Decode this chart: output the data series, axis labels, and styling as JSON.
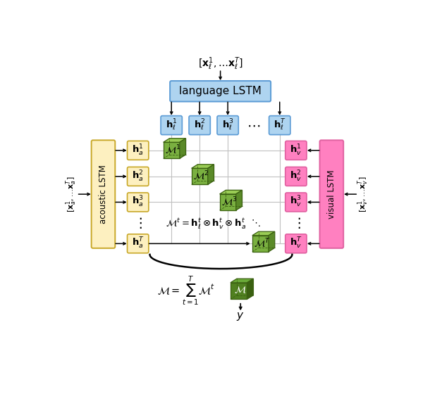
{
  "figsize": [
    6.1,
    5.9
  ],
  "dpi": 100,
  "bg_color": "#ffffff",
  "blue_color": "#aed4f0",
  "blue_edge": "#5b9bd5",
  "yellow_color": "#fdf0c0",
  "yellow_edge": "#c8a828",
  "pink_color": "#ff80c0",
  "pink_edge": "#e060a0",
  "green_face": "#7ab040",
  "green_top": "#9acc55",
  "green_side": "#5a8a28",
  "green_dark_face": "#508020",
  "green_dark_top": "#6aaa38",
  "green_dark_side": "#3a6010",
  "green_edge": "#3a6010",
  "grid_color": "#cccccc",
  "text_color": "#000000",
  "lang_lstm_label": "language LSTM",
  "acou_lstm_label": "acoustic LSTM",
  "vis_lstm_label": "visual LSTM",
  "input_lang": "$[\\mathbf{x}^1_\\ell, \\ldots \\mathbf{x}^T_\\ell]$",
  "input_acou": "$[\\mathbf{x}^1_a, \\ldots \\mathbf{x}^T_a]$",
  "input_vis": "$[\\mathbf{x}^1_v, \\ldots \\mathbf{x}^T_v]$",
  "formula": "$\\mathcal{M}^t = \\mathbf{h}^t_\\ell \\otimes \\mathbf{h}^t_v \\otimes \\mathbf{h}^t_a$",
  "sum_formula": "$\\mathcal{M} = \\displaystyle\\sum_{t=1}^{T} \\mathcal{M}^t$"
}
